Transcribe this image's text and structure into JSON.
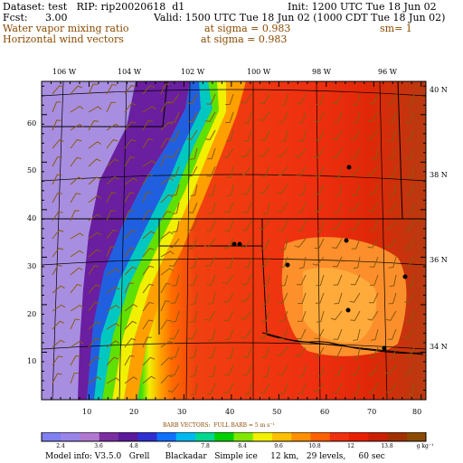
{
  "header": {
    "dataset_line": "Dataset: test   RIP: rip20020618  d1",
    "fcst_label": "Fcst:",
    "fcst_value": "3.00",
    "init_line": "Init: 1200 UTC Tue 18 Jun 02",
    "valid_line": "Valid: 1500 UTC Tue 18 Jun 02 (1000 CDT Tue 18 Jun 02)",
    "field1_name": "Water vapor mixing ratio",
    "field1_level": "at sigma = 0.983",
    "field1_smoothing": "sm= 1",
    "field2_name": "Horizontal wind vectors",
    "field2_level": "at sigma = 0.983"
  },
  "map": {
    "top_longitude_labels": [
      "106 W",
      "104 W",
      "102 W",
      "100 W",
      "98 W",
      "96 W"
    ],
    "right_latitude_labels": [
      "40 N",
      "38 N",
      "36 N",
      "34 N"
    ],
    "left_grid_labels": [
      "60",
      "50",
      "40",
      "30",
      "20",
      "10"
    ],
    "bottom_grid_labels": [
      "10",
      "20",
      "30",
      "40",
      "50",
      "60",
      "70",
      "80"
    ]
  },
  "colorbar": {
    "tick_labels": [
      "2.4",
      "3.6",
      "4.8",
      "6",
      "7.8",
      "8.4",
      "9.6",
      "10.8",
      "12",
      "13.8"
    ],
    "unit": "g kg⁻¹",
    "colors": [
      "#8080f0",
      "#9a84e8",
      "#b078d0",
      "#7a2ea0",
      "#5a1a9a",
      "#3030d0",
      "#1070ff",
      "#00b8f0",
      "#00d890",
      "#00d000",
      "#80e800",
      "#f0f000",
      "#ffc000",
      "#ff9000",
      "#ff6000",
      "#f03010",
      "#e82000",
      "#c82000",
      "#a03000",
      "#8a4a00"
    ]
  },
  "barb_note": "BARB VECTORS:  FULL BARB = 5 m s⁻¹",
  "footer": "Model info: V3.5.0   Grell      Blackadar   Simple ice     12 km,   29 levels,     60 sec"
}
